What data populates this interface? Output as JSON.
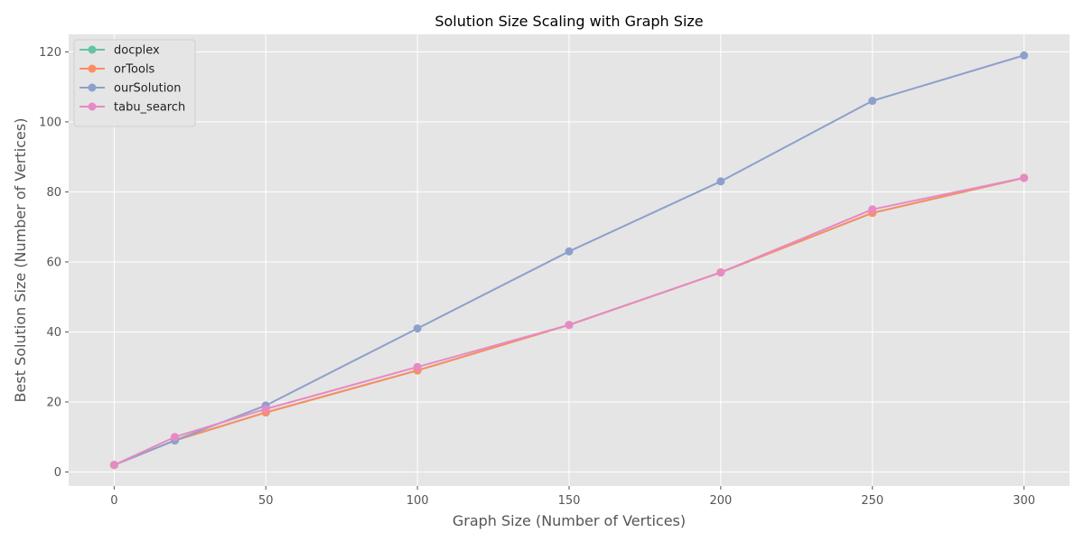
{
  "chart_data": {
    "type": "line",
    "title": "Solution Size Scaling with Graph Size",
    "xlabel": "Graph Size (Number of Vertices)",
    "ylabel": "Best Solution Size (Number of Vertices)",
    "x": [
      0,
      20,
      50,
      100,
      150,
      200,
      250,
      300
    ],
    "xlim": [
      -15,
      315
    ],
    "ylim": [
      -4,
      125
    ],
    "xticks": [
      0,
      50,
      100,
      150,
      200,
      250,
      300
    ],
    "yticks": [
      0,
      20,
      40,
      60,
      80,
      100,
      120
    ],
    "grid": true,
    "legend_position": "top-left",
    "series": [
      {
        "name": "docplex",
        "color": "#66c2a5",
        "values": [
          2,
          9,
          17,
          29,
          42,
          57,
          74,
          84
        ]
      },
      {
        "name": "orTools",
        "color": "#fc8d62",
        "values": [
          2,
          9,
          17,
          29,
          42,
          57,
          74,
          84
        ]
      },
      {
        "name": "ourSolution",
        "color": "#8da0cb",
        "values": [
          2,
          9,
          19,
          41,
          63,
          83,
          106,
          119
        ]
      },
      {
        "name": "tabu_search",
        "color": "#e78ac3",
        "values": [
          2,
          10,
          18,
          30,
          42,
          57,
          75,
          84
        ]
      }
    ]
  }
}
